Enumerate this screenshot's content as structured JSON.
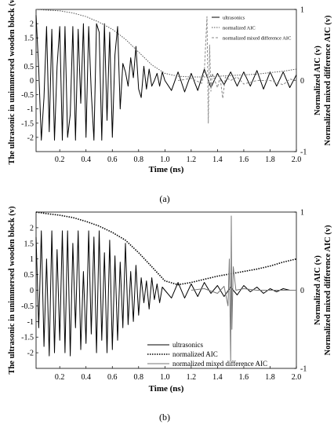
{
  "chart_data": [
    {
      "type": "line",
      "panel_label": "(a)",
      "xlabel": "Time (ns)",
      "ylabel_left": "The ultrasonic in unimmersed wooden block (v)",
      "ylabel_right_1": "Normalized AIC (v)",
      "ylabel_right_2": "Normalized mixed difference AIC (v)",
      "xlim": [
        0.02,
        2.0
      ],
      "ylim_left": [
        -2.5,
        2.5
      ],
      "ylim_right": [
        -1,
        1
      ],
      "x_ticks": [
        "0.2",
        "0.4",
        "0.6",
        "0.8",
        "1.0",
        "1.2",
        "1.4",
        "1.6",
        "1.8",
        "2.0"
      ],
      "y_ticks_left": [
        "2",
        "1.5",
        "1",
        "0.5",
        "0",
        "-0.5",
        "-1",
        "-1.5",
        "-2"
      ],
      "y_ticks_right": [
        "1",
        "0",
        "-1"
      ],
      "legend_position": "top-right",
      "series": [
        {
          "name": "ultrasonics",
          "style": "solid",
          "color": "#000000",
          "axis": "left",
          "x": [
            0.02,
            0.04,
            0.06,
            0.08,
            0.1,
            0.12,
            0.14,
            0.16,
            0.18,
            0.2,
            0.22,
            0.24,
            0.26,
            0.28,
            0.3,
            0.32,
            0.34,
            0.36,
            0.38,
            0.4,
            0.42,
            0.44,
            0.46,
            0.48,
            0.5,
            0.52,
            0.54,
            0.56,
            0.58,
            0.6,
            0.62,
            0.64,
            0.66,
            0.68,
            0.7,
            0.72,
            0.74,
            0.76,
            0.78,
            0.8,
            0.82,
            0.84,
            0.86,
            0.88,
            0.9,
            0.92,
            0.94,
            0.96,
            0.98,
            1.0,
            1.05,
            1.1,
            1.15,
            1.2,
            1.25,
            1.3,
            1.35,
            1.4,
            1.45,
            1.5,
            1.55,
            1.6,
            1.65,
            1.7,
            1.75,
            1.8,
            1.85,
            1.9,
            1.95,
            2.0
          ],
          "values": [
            2.3,
            0.4,
            -2.1,
            -0.6,
            1.9,
            -1.8,
            1.8,
            -2.1,
            0.5,
            1.9,
            -2.1,
            1.9,
            -2.0,
            -1.2,
            1.9,
            -2.1,
            1.8,
            -0.8,
            2.0,
            -2.0,
            1.9,
            -0.4,
            -2.1,
            2.0,
            1.7,
            -2.1,
            2.0,
            -1.4,
            1.7,
            -2.0,
            0.9,
            1.9,
            -1.0,
            0.6,
            0.3,
            -0.2,
            0.8,
            0.1,
            1.2,
            -0.3,
            -0.6,
            0.5,
            -0.3,
            0.4,
            -0.2,
            0.0,
            0.25,
            -0.2,
            0.3,
            0.0,
            -0.35,
            0.3,
            -0.4,
            0.25,
            -0.35,
            0.4,
            -0.25,
            0.25,
            -0.15,
            0.3,
            -0.2,
            0.3,
            -0.2,
            0.35,
            -0.3,
            0.3,
            -0.2,
            0.3,
            -0.25,
            0.2
          ]
        },
        {
          "name": "normalized AIC",
          "style": "dotted",
          "color": "#555555",
          "axis": "right",
          "x": [
            0.02,
            0.1,
            0.2,
            0.3,
            0.4,
            0.5,
            0.6,
            0.7,
            0.8,
            0.9,
            1.0,
            1.1,
            1.2,
            1.3,
            1.4,
            1.5,
            1.6,
            1.7,
            1.8,
            1.9,
            2.0
          ],
          "values": [
            1.0,
            0.99,
            0.98,
            0.95,
            0.9,
            0.82,
            0.72,
            0.58,
            0.4,
            0.22,
            0.1,
            0.06,
            0.05,
            0.05,
            0.06,
            0.07,
            0.08,
            0.09,
            0.11,
            0.13,
            0.16
          ]
        },
        {
          "name": "normalized mixed difference AIC",
          "style": "dashed",
          "color": "#888888",
          "axis": "right",
          "x": [
            1.1,
            1.2,
            1.28,
            1.3,
            1.32,
            1.33,
            1.34,
            1.35,
            1.36,
            1.38,
            1.4,
            1.42,
            1.44,
            1.46,
            1.5,
            1.55,
            1.6,
            1.7,
            1.8,
            1.9,
            1.95,
            2.0
          ],
          "values": [
            0.0,
            0.03,
            -0.04,
            0.12,
            0.9,
            -0.6,
            0.5,
            -0.15,
            0.1,
            0.0,
            -0.1,
            0.05,
            -0.25,
            0.05,
            0.0,
            0.05,
            -0.05,
            0.0,
            0.0,
            -0.06,
            0.02,
            0.0
          ]
        }
      ]
    },
    {
      "type": "line",
      "panel_label": "(b)",
      "xlabel": "Time (ns)",
      "ylabel_left": "The ultrasonic in unimmersed wooden block (v)",
      "ylabel_right_1": "Normalized AIC (v)",
      "ylabel_right_2": "Normalized mixed difference AIC (v)",
      "xlim": [
        0.02,
        2.0
      ],
      "ylim_left": [
        -2.5,
        2.5
      ],
      "ylim_right": [
        -1,
        1
      ],
      "x_ticks": [
        "0.2",
        "0.4",
        "0.6",
        "0.8",
        "1.0",
        "1.2",
        "1.4",
        "1.6",
        "1.8",
        "2.0"
      ],
      "y_ticks_left": [
        "2",
        "1.5",
        "1",
        "0.5",
        "0",
        "-0.5",
        "-1",
        "-1.5",
        "-2"
      ],
      "y_ticks_right": [
        "1",
        "0",
        "-1"
      ],
      "legend_position": "bottom-center",
      "series": [
        {
          "name": "ultrasonics",
          "style": "solid",
          "color": "#000000",
          "axis": "left",
          "x": [
            0.02,
            0.04,
            0.06,
            0.08,
            0.1,
            0.12,
            0.14,
            0.16,
            0.18,
            0.2,
            0.22,
            0.24,
            0.26,
            0.28,
            0.3,
            0.32,
            0.34,
            0.36,
            0.38,
            0.4,
            0.42,
            0.44,
            0.46,
            0.48,
            0.5,
            0.52,
            0.54,
            0.56,
            0.58,
            0.6,
            0.62,
            0.64,
            0.66,
            0.68,
            0.7,
            0.72,
            0.74,
            0.76,
            0.78,
            0.8,
            0.82,
            0.84,
            0.86,
            0.88,
            0.9,
            0.92,
            0.94,
            0.96,
            0.98,
            1.0,
            1.05,
            1.1,
            1.15,
            1.2,
            1.25,
            1.3,
            1.35,
            1.4,
            1.45,
            1.5,
            1.55,
            1.6,
            1.65,
            1.7,
            1.75,
            1.8,
            1.85,
            1.9,
            1.95,
            2.0
          ],
          "values": [
            1.7,
            -1.2,
            1.9,
            -1.8,
            1.0,
            -2.1,
            1.9,
            -2.0,
            1.3,
            -1.6,
            1.9,
            -2.0,
            1.9,
            -2.1,
            1.5,
            -1.2,
            1.9,
            -1.9,
            0.6,
            -1.7,
            1.9,
            -1.4,
            1.7,
            -2.0,
            1.9,
            -1.6,
            1.2,
            -2.0,
            1.6,
            -1.9,
            1.1,
            -1.6,
            0.9,
            -1.2,
            1.5,
            -1.1,
            0.6,
            -1.0,
            0.8,
            -0.8,
            0.4,
            -0.4,
            0.3,
            -0.6,
            0.4,
            -0.3,
            0.2,
            -0.4,
            0.1,
            0.0,
            -0.25,
            0.25,
            -0.25,
            0.2,
            -0.2,
            0.25,
            -0.1,
            0.15,
            -0.2,
            0.1,
            -0.15,
            0.15,
            -0.05,
            0.1,
            -0.1,
            0.05,
            -0.05,
            0.05,
            0.0,
            0.0
          ]
        },
        {
          "name": "normalized AIC",
          "style": "dotted",
          "color": "#000000",
          "axis": "right",
          "x": [
            0.02,
            0.1,
            0.2,
            0.3,
            0.4,
            0.5,
            0.6,
            0.7,
            0.8,
            0.9,
            1.0,
            1.1,
            1.2,
            1.3,
            1.4,
            1.5,
            1.6,
            1.7,
            1.8,
            1.9,
            2.0
          ],
          "values": [
            1.0,
            0.98,
            0.96,
            0.93,
            0.88,
            0.82,
            0.74,
            0.64,
            0.48,
            0.3,
            0.12,
            0.07,
            0.1,
            0.14,
            0.18,
            0.21,
            0.24,
            0.27,
            0.31,
            0.36,
            0.4
          ]
        },
        {
          "name": "normalized mixed difference AIC",
          "style": "solid",
          "color": "#777777",
          "axis": "right",
          "x": [
            1.2,
            1.3,
            1.4,
            1.45,
            1.48,
            1.49,
            1.5,
            1.505,
            1.51,
            1.52,
            1.54,
            1.6,
            1.7,
            2.0
          ],
          "values": [
            0.0,
            0.02,
            -0.04,
            0.05,
            -0.2,
            0.4,
            -0.9,
            0.95,
            -0.5,
            0.3,
            0.0,
            0.02,
            0.0,
            0.0
          ]
        }
      ]
    }
  ]
}
